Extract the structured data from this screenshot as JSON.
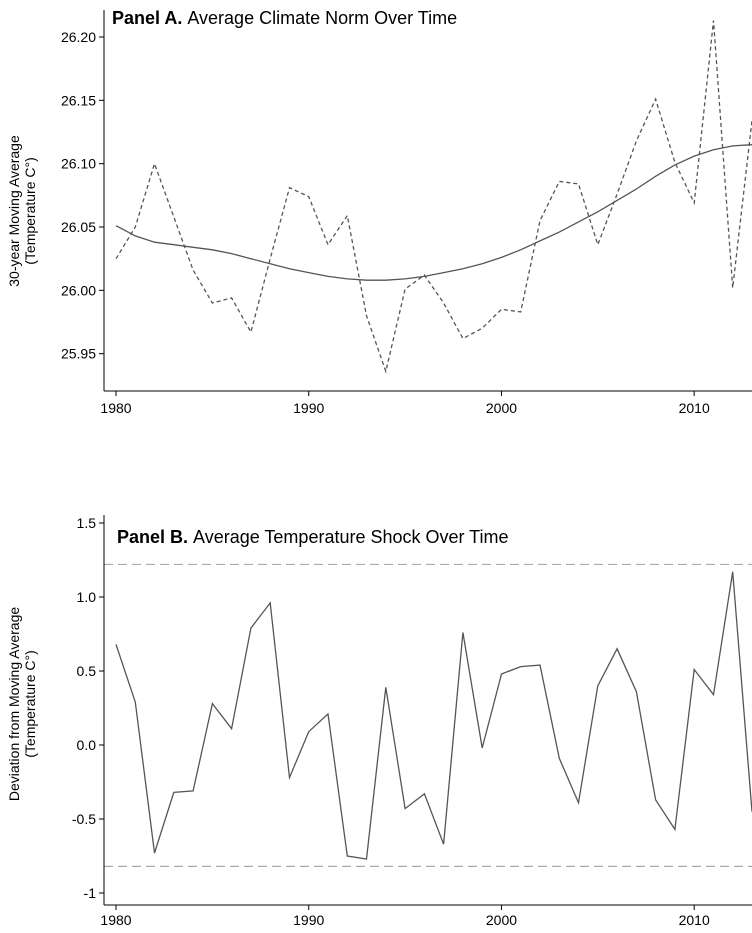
{
  "chart_data": [
    {
      "type": "line",
      "title_bold": "Panel A.",
      "title": "Average Climate Norm Over Time",
      "xlabel": "",
      "ylabel": [
        "30-year Moving Average",
        "(Temperature C°)"
      ],
      "xlim": [
        1980,
        2013
      ],
      "ylim": [
        25.93,
        26.215
      ],
      "xticks": [
        1980,
        1990,
        2000,
        2010
      ],
      "yticks": [
        "25.95",
        "26.00",
        "26.05",
        "26.10",
        "26.15",
        "26.20"
      ],
      "grid": false,
      "series": [
        {
          "style": "dashed",
          "color": "#555555",
          "x": [
            1980,
            1981,
            1982,
            1983,
            1984,
            1985,
            1986,
            1987,
            1988,
            1989,
            1990,
            1991,
            1992,
            1993,
            1994,
            1995,
            1996,
            1997,
            1998,
            1999,
            2000,
            2001,
            2002,
            2003,
            2004,
            2005,
            2006,
            2007,
            2008,
            2009,
            2010,
            2011,
            2012,
            2013
          ],
          "y": [
            26.025,
            26.05,
            26.1,
            26.058,
            26.016,
            25.99,
            25.994,
            25.967,
            26.025,
            26.081,
            26.074,
            26.036,
            26.059,
            25.98,
            25.936,
            26.001,
            26.012,
            25.99,
            25.962,
            25.97,
            25.985,
            25.983,
            26.055,
            26.086,
            26.084,
            26.036,
            26.076,
            26.118,
            26.151,
            26.101,
            26.069,
            26.213,
            26.002,
            26.134
          ]
        },
        {
          "style": "solid",
          "color": "#555555",
          "x": [
            1980,
            1981,
            1982,
            1983,
            1984,
            1985,
            1986,
            1987,
            1988,
            1989,
            1990,
            1991,
            1992,
            1993,
            1994,
            1995,
            1996,
            1997,
            1998,
            1999,
            2000,
            2001,
            2002,
            2003,
            2004,
            2005,
            2006,
            2007,
            2008,
            2009,
            2010,
            2011,
            2012,
            2013
          ],
          "y": [
            26.051,
            26.043,
            26.038,
            26.036,
            26.034,
            26.032,
            26.029,
            26.025,
            26.021,
            26.017,
            26.014,
            26.011,
            26.009,
            26.008,
            26.008,
            26.009,
            26.011,
            26.014,
            26.017,
            26.021,
            26.026,
            26.032,
            26.039,
            26.046,
            26.054,
            26.062,
            26.071,
            26.08,
            26.09,
            26.099,
            26.106,
            26.111,
            26.114,
            26.115
          ]
        }
      ]
    },
    {
      "type": "line",
      "title_bold": "Panel B.",
      "title": "Average Temperature Shock Over Time",
      "xlabel": "",
      "ylabel": [
        "Deviation from Moving Average",
        "(Temperature C°)"
      ],
      "xlim": [
        1980,
        2013
      ],
      "ylim": [
        -1.0,
        1.5
      ],
      "xticks": [
        1980,
        1990,
        2000,
        2010
      ],
      "yticks": [
        "-1",
        "-0.5",
        "0.0",
        "0.5",
        "1.0",
        "1.5"
      ],
      "ytick_values": [
        -1.0,
        -0.5,
        0.0,
        0.5,
        1.0,
        1.5
      ],
      "grid": false,
      "reference_lines": [
        1.22,
        -0.82
      ],
      "series": [
        {
          "style": "solid",
          "color": "#555555",
          "x": [
            1980,
            1981,
            1982,
            1983,
            1984,
            1985,
            1986,
            1987,
            1988,
            1989,
            1990,
            1991,
            1992,
            1993,
            1994,
            1995,
            1996,
            1997,
            1998,
            1999,
            2000,
            2001,
            2002,
            2003,
            2004,
            2005,
            2006,
            2007,
            2008,
            2009,
            2010,
            2011,
            2012,
            2013
          ],
          "y": [
            0.68,
            0.29,
            -0.73,
            -0.32,
            -0.31,
            0.28,
            0.11,
            0.79,
            0.96,
            -0.22,
            0.09,
            0.21,
            -0.75,
            -0.77,
            0.39,
            -0.43,
            -0.33,
            -0.67,
            0.76,
            -0.02,
            0.48,
            0.53,
            0.54,
            -0.09,
            -0.39,
            0.4,
            0.65,
            0.36,
            -0.37,
            -0.57,
            0.51,
            0.34,
            1.17,
            -0.45
          ]
        }
      ]
    }
  ]
}
